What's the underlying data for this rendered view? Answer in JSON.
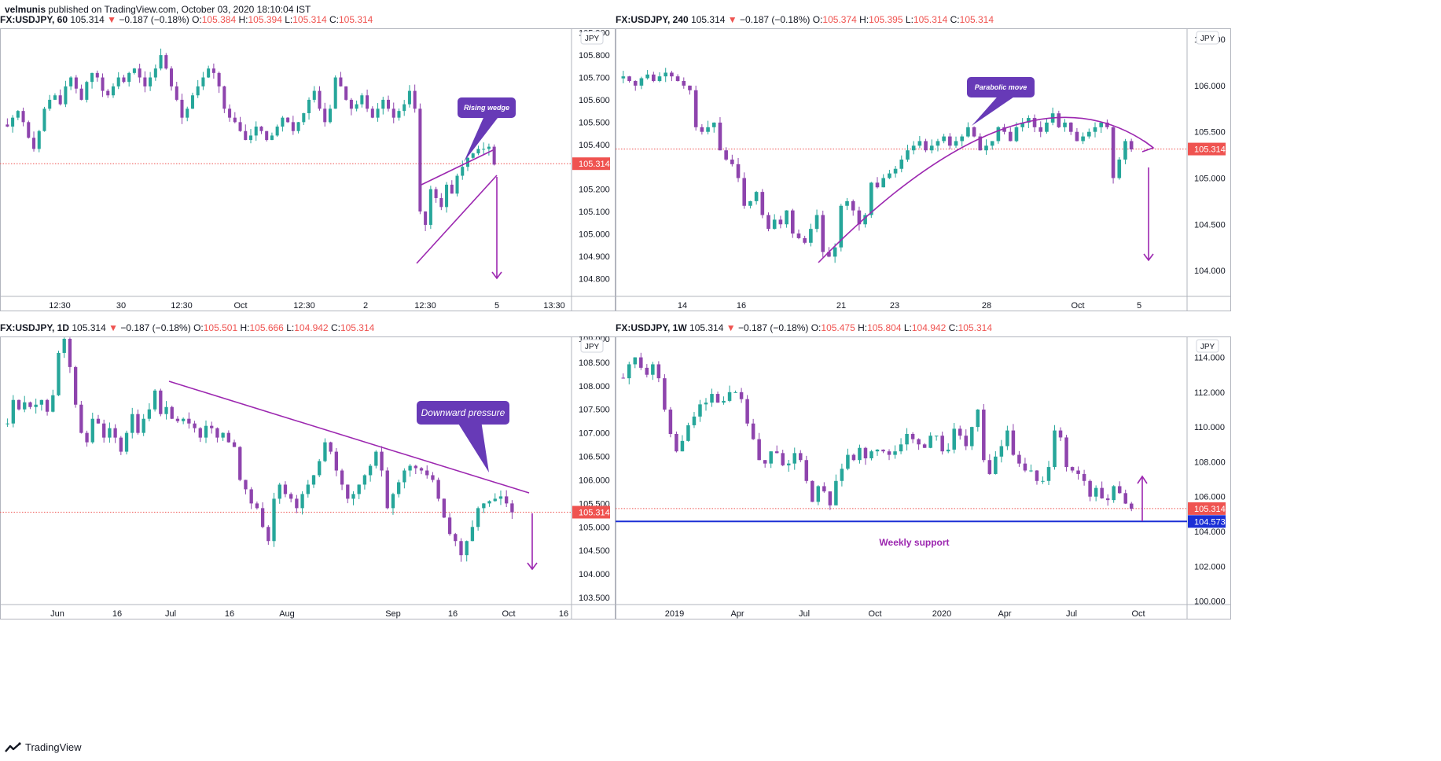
{
  "header": {
    "author": "velmunis",
    "published": "published on TradingView.com, October 03, 2020 18:10:04 IST"
  },
  "footer": {
    "brand": "TradingView"
  },
  "colors": {
    "up": "#26a69a",
    "down": "#8e44ad",
    "annotation": "#9c27b0",
    "last_price": "#ef5350",
    "support": "#1b2fd6",
    "label_fill": "#673ab7"
  },
  "icons": {
    "change": "triangle-down-icon",
    "brand": "tradingview-logo-icon"
  },
  "panels": [
    {
      "id": "p60",
      "symbol": "FX:USDJPY, 60",
      "last": "105.314",
      "change": "−0.187 (−0.18%)",
      "o": "105.384",
      "h": "105.394",
      "l": "105.314",
      "c": "105.314",
      "o_label": "O:",
      "h_label": "H:",
      "l_label": "L:",
      "c_label": "C:",
      "currency": "JPY",
      "price_tag": "105.314",
      "y_ticks": [
        "105.900",
        "105.800",
        "105.700",
        "105.600",
        "105.500",
        "105.400",
        "105.300",
        "105.200",
        "105.100",
        "105.000",
        "104.900",
        "104.800"
      ],
      "x_ticks": [
        "12:30",
        "30",
        "12:30",
        "Oct",
        "12:30",
        "2",
        "12:30",
        "5",
        "13:30"
      ],
      "annotation": "Rising wedge"
    },
    {
      "id": "p240",
      "symbol": "FX:USDJPY, 240",
      "last": "105.314",
      "change": "−0.187 (−0.18%)",
      "o": "105.374",
      "h": "105.395",
      "l": "105.314",
      "c": "105.314",
      "o_label": "O:",
      "h_label": "H:",
      "l_label": "L:",
      "c_label": "C:",
      "currency": "JPY",
      "price_tag": "105.314",
      "y_ticks": [
        "106.500",
        "106.000",
        "105.500",
        "105.000",
        "104.500",
        "104.000"
      ],
      "x_ticks": [
        "14",
        "16",
        "21",
        "23",
        "28",
        "Oct",
        "5"
      ],
      "annotation": "Parabolic move"
    },
    {
      "id": "p1d",
      "symbol": "FX:USDJPY, 1D",
      "last": "105.314",
      "change": "−0.187 (−0.18%)",
      "o": "105.501",
      "h": "105.666",
      "l": "104.942",
      "c": "105.314",
      "o_label": "O:",
      "h_label": "H:",
      "l_label": "L:",
      "c_label": "C:",
      "currency": "JPY",
      "price_tag": "105.314",
      "y_ticks": [
        "109.000",
        "108.500",
        "108.000",
        "107.500",
        "107.000",
        "106.500",
        "106.000",
        "105.500",
        "105.000",
        "104.500",
        "104.000",
        "103.500"
      ],
      "x_ticks": [
        "Jun",
        "16",
        "Jul",
        "16",
        "Aug",
        "Sep",
        "16",
        "Oct",
        "16"
      ],
      "annotation": "Downward pressure"
    },
    {
      "id": "p1w",
      "symbol": "FX:USDJPY, 1W",
      "last": "105.314",
      "change": "−0.187 (−0.18%)",
      "o": "105.475",
      "h": "105.804",
      "l": "104.942",
      "c": "105.314",
      "o_label": "O:",
      "h_label": "H:",
      "l_label": "L:",
      "c_label": "C:",
      "currency": "JPY",
      "price_tag": "105.314",
      "support_tag": "104.573",
      "y_ticks": [
        "114.000",
        "112.000",
        "110.000",
        "108.000",
        "106.000",
        "104.000",
        "102.000",
        "100.000"
      ],
      "x_ticks": [
        "2019",
        "Apr",
        "Jul",
        "Oct",
        "2020",
        "Apr",
        "Jul",
        "Oct"
      ],
      "annotation": "Weekly support"
    }
  ],
  "chart_data": [
    {
      "type": "candlestick",
      "timeframe": "60",
      "ylim": [
        104.72,
        105.92
      ],
      "last": 105.314,
      "series": [
        {
          "name": "USDJPY",
          "close": [
            105.48,
            105.52,
            105.55,
            105.5,
            105.43,
            105.38,
            105.46,
            105.56,
            105.6,
            105.62,
            105.58,
            105.66,
            105.7,
            105.65,
            105.6,
            105.68,
            105.72,
            105.7,
            105.64,
            105.62,
            105.66,
            105.7,
            105.68,
            105.72,
            105.74,
            105.7,
            105.66,
            105.7,
            105.74,
            105.8,
            105.74,
            105.66,
            105.6,
            105.52,
            105.56,
            105.62,
            105.66,
            105.7,
            105.74,
            105.72,
            105.66,
            105.56,
            105.52,
            105.5,
            105.46,
            105.42,
            105.44,
            105.48,
            105.46,
            105.42,
            105.44,
            105.48,
            105.52,
            105.5,
            105.46,
            105.5,
            105.54,
            105.6,
            105.64,
            105.56,
            105.5,
            105.56,
            105.7,
            105.66,
            105.6,
            105.56,
            105.58,
            105.62,
            105.56,
            105.52,
            105.56,
            105.6,
            105.56,
            105.52,
            105.55,
            105.58,
            105.64,
            105.56,
            105.1,
            105.04,
            105.2,
            105.16,
            105.12,
            105.22,
            105.18,
            105.26,
            105.3,
            105.34,
            105.36,
            105.38,
            105.38,
            105.39,
            105.31
          ]
        }
      ]
    },
    {
      "type": "candlestick",
      "timeframe": "240",
      "ylim": [
        103.72,
        106.62
      ],
      "last": 105.314,
      "series": [
        {
          "name": "USDJPY",
          "close": [
            106.1,
            106.05,
            106.0,
            106.08,
            106.12,
            106.05,
            106.1,
            106.14,
            106.1,
            106.05,
            106.0,
            105.95,
            105.55,
            105.5,
            105.55,
            105.6,
            105.3,
            105.2,
            105.15,
            105.0,
            104.7,
            104.75,
            104.85,
            104.6,
            104.45,
            104.55,
            104.5,
            104.65,
            104.4,
            104.35,
            104.3,
            104.45,
            104.6,
            104.2,
            104.15,
            104.25,
            104.7,
            104.75,
            104.65,
            104.5,
            104.6,
            104.95,
            104.9,
            105.0,
            105.05,
            105.1,
            105.2,
            105.3,
            105.35,
            105.4,
            105.3,
            105.35,
            105.4,
            105.45,
            105.35,
            105.4,
            105.45,
            105.55,
            105.45,
            105.3,
            105.35,
            105.4,
            105.55,
            105.5,
            105.4,
            105.55,
            105.6,
            105.65,
            105.55,
            105.5,
            105.6,
            105.7,
            105.55,
            105.6,
            105.5,
            105.4,
            105.45,
            105.5,
            105.55,
            105.6,
            105.55,
            105.0,
            105.2,
            105.4,
            105.31
          ]
        }
      ]
    },
    {
      "type": "candlestick",
      "timeframe": "1D",
      "ylim": [
        103.35,
        109.05
      ],
      "last": 105.314,
      "series": [
        {
          "name": "USDJPY",
          "close": [
            107.2,
            107.7,
            107.5,
            107.65,
            107.55,
            107.6,
            107.7,
            107.45,
            107.8,
            108.7,
            109.0,
            108.4,
            107.6,
            107.0,
            106.8,
            107.3,
            107.2,
            106.9,
            107.1,
            106.9,
            106.6,
            107.0,
            107.4,
            107.0,
            107.3,
            107.5,
            107.9,
            107.4,
            107.55,
            107.3,
            107.25,
            107.3,
            107.2,
            107.1,
            106.9,
            107.15,
            107.1,
            106.9,
            107.0,
            106.8,
            106.7,
            106.0,
            105.8,
            105.5,
            105.4,
            105.0,
            104.7,
            105.6,
            105.9,
            105.7,
            105.6,
            105.4,
            105.7,
            105.9,
            106.1,
            106.4,
            106.8,
            106.6,
            106.2,
            105.9,
            105.6,
            105.7,
            105.9,
            106.1,
            106.3,
            106.6,
            106.2,
            105.4,
            105.7,
            105.95,
            106.2,
            106.3,
            106.25,
            106.2,
            106.1,
            106.0,
            105.6,
            105.2,
            104.85,
            104.7,
            104.4,
            104.7,
            105.0,
            105.4,
            105.5,
            105.55,
            105.6,
            105.65,
            105.5,
            105.31
          ]
        }
      ]
    },
    {
      "type": "candlestick",
      "timeframe": "1W",
      "ylim": [
        99.8,
        115.2
      ],
      "last": 105.314,
      "support": 104.573,
      "series": [
        {
          "name": "USDJPY",
          "close": [
            112.8,
            113.6,
            114.0,
            113.4,
            113.0,
            113.6,
            112.8,
            111.0,
            109.6,
            108.6,
            109.2,
            110.1,
            110.6,
            111.3,
            111.4,
            111.9,
            111.4,
            111.5,
            112.0,
            112.0,
            111.6,
            110.2,
            109.3,
            108.1,
            107.9,
            108.6,
            108.5,
            107.8,
            107.9,
            108.5,
            108.1,
            106.9,
            105.7,
            106.6,
            106.3,
            105.5,
            106.9,
            107.6,
            108.4,
            108.1,
            108.8,
            108.2,
            108.6,
            108.7,
            108.6,
            108.4,
            108.6,
            109.0,
            109.6,
            109.3,
            109.0,
            108.8,
            109.5,
            109.5,
            108.6,
            108.7,
            109.9,
            109.5,
            108.9,
            110.0,
            111.0,
            108.1,
            107.3,
            108.3,
            108.9,
            109.8,
            108.4,
            107.9,
            107.5,
            107.5,
            106.9,
            106.9,
            107.7,
            109.8,
            109.4,
            107.7,
            107.5,
            107.3,
            106.9,
            106.0,
            106.5,
            105.9,
            105.8,
            106.6,
            106.2,
            105.6,
            105.3
          ]
        }
      ]
    }
  ]
}
